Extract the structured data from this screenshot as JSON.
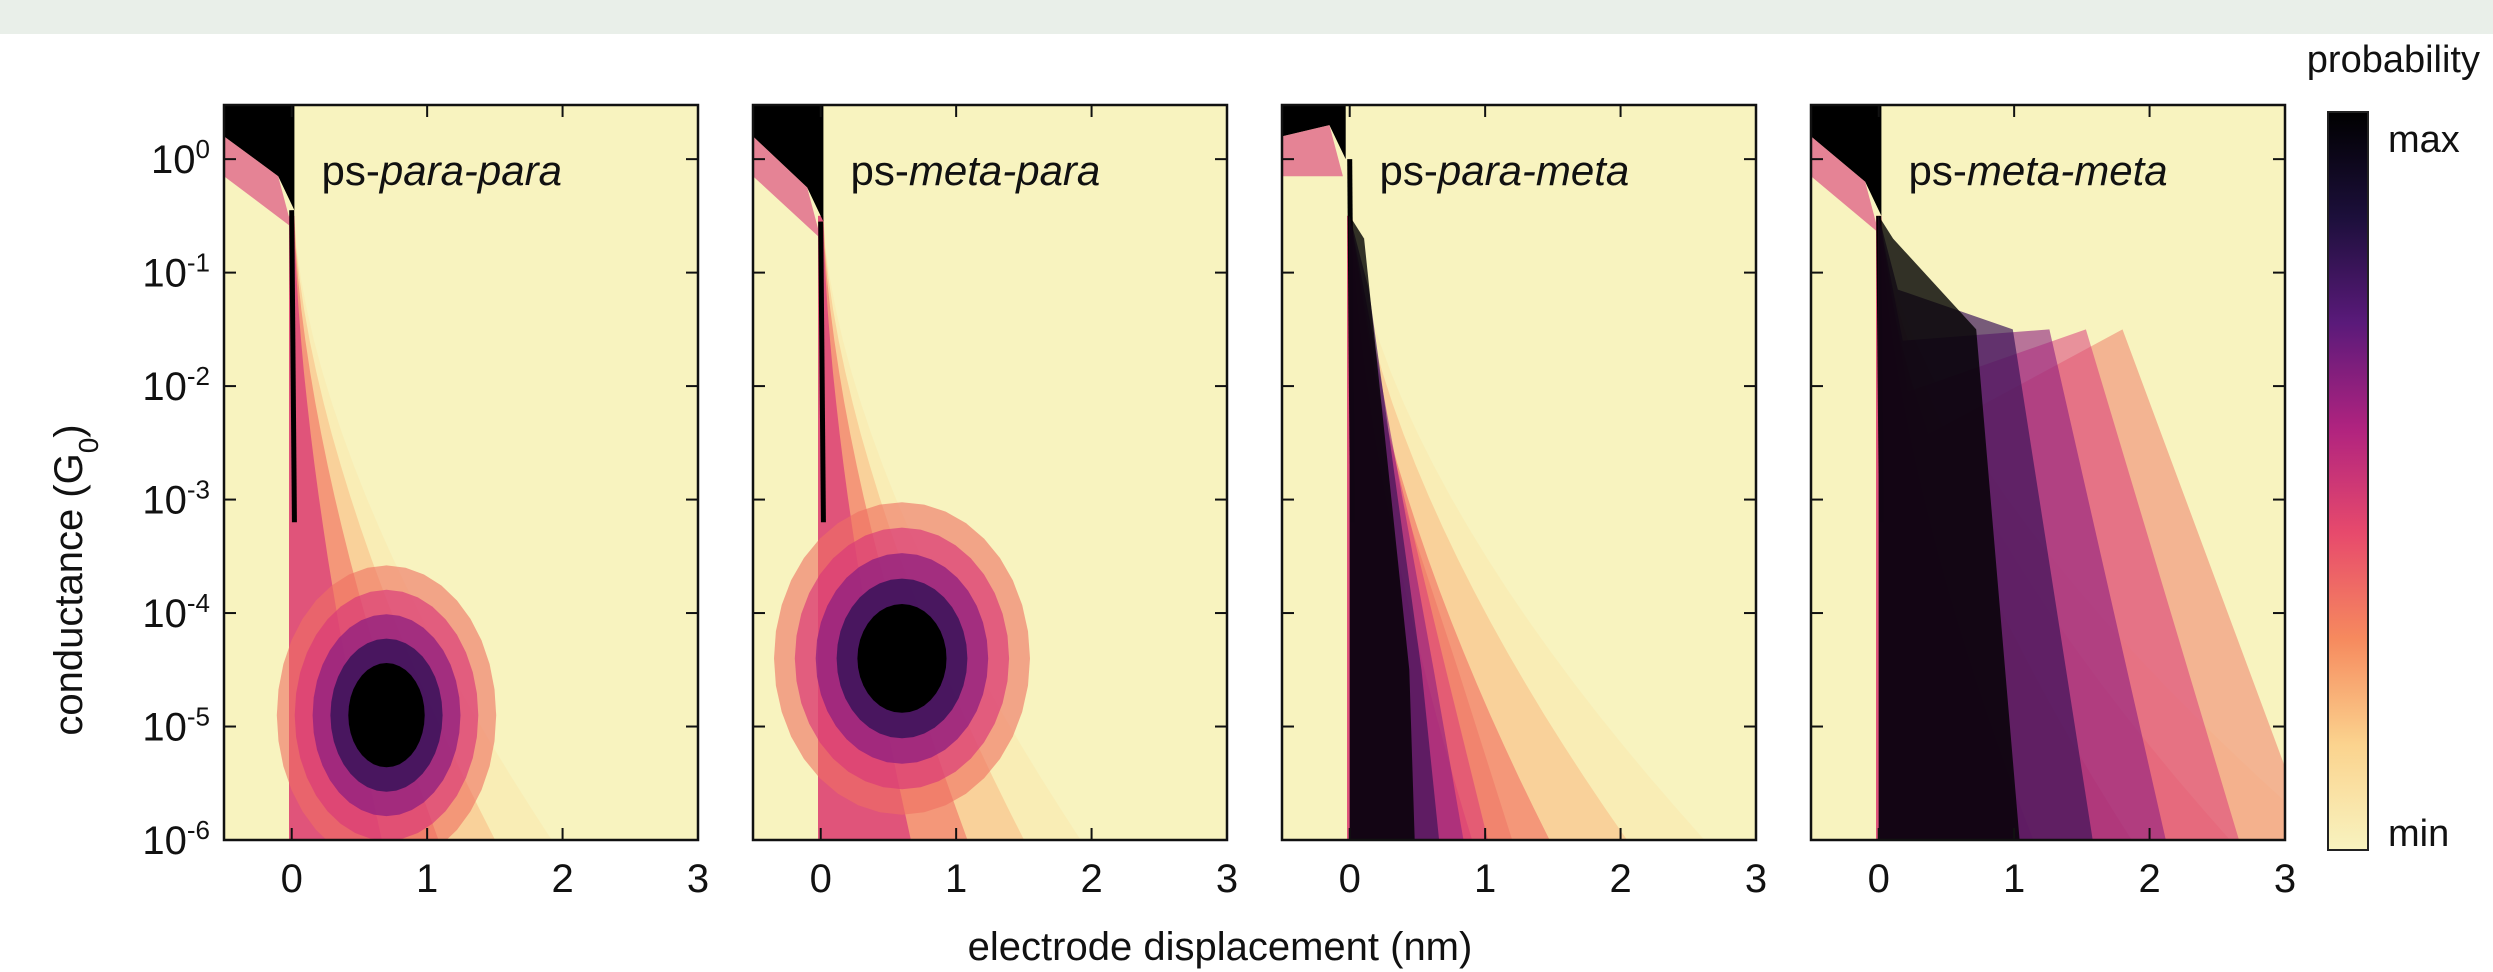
{
  "chart_data": [
    {
      "type": "heatmap",
      "panel_label_prefix": "ps-",
      "panel_label_rest": "para-para",
      "xlabel": "electrode displacement (nm)",
      "ylabel": "conductance (G0)",
      "xlim": [
        -0.5,
        3
      ],
      "ylim": [
        1e-06,
        3
      ],
      "yscale": "log",
      "xticks": [
        0,
        1,
        2,
        3
      ],
      "yticks": [
        1,
        0.1,
        0.01,
        0.001,
        0.0001,
        1e-05,
        1e-06
      ],
      "features": [
        {
          "name": "contact plateau",
          "x_start": -0.5,
          "x_end": 0.0,
          "log10_G_top": 0.45,
          "log10_G_bottom": -0.45
        },
        {
          "name": "molecular plateau",
          "x_center": 0.7,
          "log10_G_center": -4.9,
          "x_span": [
            0.1,
            1.3
          ],
          "log10_G_span": [
            -5.5,
            -3.2
          ]
        }
      ]
    },
    {
      "type": "heatmap",
      "panel_label_prefix": "ps-",
      "panel_label_rest": "meta-para",
      "xlabel": "electrode displacement (nm)",
      "ylabel": "conductance (G0)",
      "xlim": [
        -0.5,
        3
      ],
      "ylim": [
        1e-06,
        3
      ],
      "yscale": "log",
      "xticks": [
        0,
        1,
        2,
        3
      ],
      "yticks": [
        1,
        0.1,
        0.01,
        0.001,
        0.0001,
        1e-05,
        1e-06
      ],
      "features": [
        {
          "name": "contact plateau",
          "x_start": -0.5,
          "x_end": 0.0,
          "log10_G_top": 0.45,
          "log10_G_bottom": -0.55
        },
        {
          "name": "molecular plateau",
          "x_center": 0.6,
          "log10_G_center": -4.4,
          "x_span": [
            0.0,
            1.4
          ],
          "log10_G_span": [
            -5.2,
            -2.8
          ]
        }
      ]
    },
    {
      "type": "heatmap",
      "panel_label_prefix": "ps-",
      "panel_label_rest": "para-meta",
      "xlabel": "electrode displacement (nm)",
      "ylabel": "conductance (G0)",
      "xlim": [
        -0.5,
        3
      ],
      "ylim": [
        1e-06,
        3
      ],
      "yscale": "log",
      "xticks": [
        0,
        1,
        2,
        3
      ],
      "yticks": [
        1,
        0.1,
        0.01,
        0.001,
        0.0001,
        1e-05,
        1e-06
      ],
      "features": [
        {
          "name": "contact plateau",
          "x_start": -0.5,
          "x_end": -0.05,
          "log10_G_top": 0.45,
          "log10_G_bottom": 0.0
        },
        {
          "name": "decay tail",
          "x_span": [
            0.0,
            1.0
          ],
          "log10_G_span": [
            -6,
            -4.0
          ]
        }
      ]
    },
    {
      "type": "heatmap",
      "panel_label_prefix": "ps-",
      "panel_label_rest": "meta-meta",
      "xlabel": "electrode displacement (nm)",
      "ylabel": "conductance (G0)",
      "xlim": [
        -0.5,
        3
      ],
      "ylim": [
        1e-06,
        3
      ],
      "yscale": "log",
      "xticks": [
        0,
        1,
        2,
        3
      ],
      "yticks": [
        1,
        0.1,
        0.01,
        0.001,
        0.0001,
        1e-05,
        1e-06
      ],
      "features": [
        {
          "name": "contact plateau",
          "x_start": -0.5,
          "x_end": 0.0,
          "log10_G_top": 0.45,
          "log10_G_bottom": -0.5
        },
        {
          "name": "broad decay band",
          "x_span": [
            0.0,
            3.0
          ],
          "log10_G_span": [
            -6,
            -1.0
          ]
        }
      ]
    }
  ],
  "colorbar": {
    "title": "probability",
    "max_label": "max",
    "min_label": "min",
    "stops": [
      "#f8f3bf",
      "#fbd38e",
      "#f68a5e",
      "#e74a6c",
      "#b0237f",
      "#5a1a7a",
      "#1c0f3b",
      "#000000"
    ]
  },
  "axis_text": {
    "xlabel": "electrode displacement (nm)",
    "ylabel_main": "conductance (G",
    "ylabel_sub": "0",
    "ylabel_close": ")"
  }
}
